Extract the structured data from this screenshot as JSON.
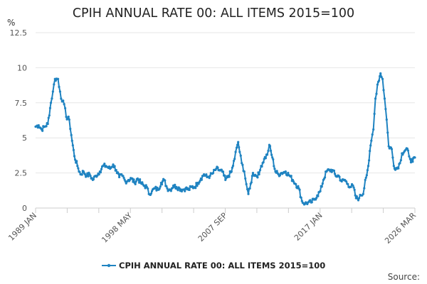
{
  "chart_data": {
    "type": "line",
    "title": "CPIH ANNUAL RATE 00: ALL ITEMS 2015=100",
    "ylabel": "%",
    "xlabel": "",
    "ylim": [
      0,
      12.5
    ],
    "yticks": [
      "0",
      "2.5",
      "5",
      "7.5",
      "10",
      "12.5"
    ],
    "ytick_values": [
      0,
      2.5,
      5,
      7.5,
      10,
      12.5
    ],
    "xticks": [
      "1989 JAN",
      "1998 MAY",
      "2007 SEP",
      "2017 JAN",
      "2026 MAR"
    ],
    "xtick_years": [
      1989.0,
      1998.333,
      2007.667,
      2017.0,
      2026.167
    ],
    "xlim": [
      1989.0,
      2026.167
    ],
    "grid": "horizontal",
    "legend_position": "bottom-center",
    "color": "#1f83c1",
    "series": [
      {
        "name": "CPIH ANNUAL RATE 00: ALL ITEMS 2015=100",
        "anchors": [
          [
            1989.0,
            5.8
          ],
          [
            1989.3,
            5.9
          ],
          [
            1989.6,
            5.6
          ],
          [
            1989.9,
            5.8
          ],
          [
            1990.2,
            6.0
          ],
          [
            1990.5,
            7.5
          ],
          [
            1990.7,
            8.3
          ],
          [
            1990.9,
            9.2
          ],
          [
            1991.2,
            9.2
          ],
          [
            1991.4,
            8.3
          ],
          [
            1991.6,
            7.6
          ],
          [
            1991.8,
            7.4
          ],
          [
            1992.0,
            6.5
          ],
          [
            1992.3,
            6.3
          ],
          [
            1992.5,
            5.2
          ],
          [
            1992.8,
            3.7
          ],
          [
            1993.1,
            3.0
          ],
          [
            1993.4,
            2.4
          ],
          [
            1993.7,
            2.6
          ],
          [
            1994.0,
            2.3
          ],
          [
            1994.3,
            2.4
          ],
          [
            1994.6,
            2.0
          ],
          [
            1994.9,
            2.3
          ],
          [
            1995.3,
            2.6
          ],
          [
            1995.6,
            3.0
          ],
          [
            1995.9,
            3.0
          ],
          [
            1996.3,
            2.8
          ],
          [
            1996.6,
            3.1
          ],
          [
            1996.9,
            2.7
          ],
          [
            1997.2,
            2.2
          ],
          [
            1997.5,
            2.3
          ],
          [
            1997.8,
            1.9
          ],
          [
            1998.1,
            2.0
          ],
          [
            1998.4,
            2.1
          ],
          [
            1998.7,
            1.8
          ],
          [
            1999.0,
            2.1
          ],
          [
            1999.3,
            1.8
          ],
          [
            1999.6,
            1.6
          ],
          [
            1999.9,
            1.5
          ],
          [
            2000.1,
            1.0
          ],
          [
            2000.4,
            1.2
          ],
          [
            2000.7,
            1.4
          ],
          [
            2001.0,
            1.3
          ],
          [
            2001.3,
            1.8
          ],
          [
            2001.6,
            2.0
          ],
          [
            2001.9,
            1.4
          ],
          [
            2002.2,
            1.3
          ],
          [
            2002.5,
            1.6
          ],
          [
            2002.8,
            1.5
          ],
          [
            2003.1,
            1.4
          ],
          [
            2003.4,
            1.3
          ],
          [
            2003.7,
            1.4
          ],
          [
            2004.0,
            1.3
          ],
          [
            2004.3,
            1.5
          ],
          [
            2004.6,
            1.5
          ],
          [
            2004.9,
            1.8
          ],
          [
            2005.2,
            2.1
          ],
          [
            2005.5,
            2.4
          ],
          [
            2005.8,
            2.2
          ],
          [
            2006.1,
            2.3
          ],
          [
            2006.4,
            2.5
          ],
          [
            2006.7,
            2.8
          ],
          [
            2007.0,
            2.7
          ],
          [
            2007.3,
            2.6
          ],
          [
            2007.6,
            2.0
          ],
          [
            2007.9,
            2.3
          ],
          [
            2008.2,
            2.6
          ],
          [
            2008.5,
            3.5
          ],
          [
            2008.7,
            4.3
          ],
          [
            2008.85,
            4.7
          ],
          [
            2009.0,
            4.0
          ],
          [
            2009.2,
            3.2
          ],
          [
            2009.45,
            2.6
          ],
          [
            2009.65,
            1.7
          ],
          [
            2009.85,
            1.0
          ],
          [
            2010.0,
            1.4
          ],
          [
            2010.3,
            2.5
          ],
          [
            2010.6,
            2.3
          ],
          [
            2010.9,
            2.4
          ],
          [
            2011.1,
            3.0
          ],
          [
            2011.4,
            3.5
          ],
          [
            2011.7,
            3.8
          ],
          [
            2011.9,
            4.5
          ],
          [
            2012.2,
            3.6
          ],
          [
            2012.5,
            2.6
          ],
          [
            2012.8,
            2.4
          ],
          [
            2013.1,
            2.5
          ],
          [
            2013.5,
            2.6
          ],
          [
            2013.9,
            2.3
          ],
          [
            2014.2,
            2.0
          ],
          [
            2014.5,
            1.7
          ],
          [
            2014.8,
            1.4
          ],
          [
            2015.1,
            0.5
          ],
          [
            2015.4,
            0.3
          ],
          [
            2015.7,
            0.4
          ],
          [
            2016.0,
            0.4
          ],
          [
            2016.3,
            0.6
          ],
          [
            2016.6,
            0.9
          ],
          [
            2016.9,
            1.2
          ],
          [
            2017.2,
            2.0
          ],
          [
            2017.5,
            2.6
          ],
          [
            2017.8,
            2.7
          ],
          [
            2018.1,
            2.7
          ],
          [
            2018.4,
            2.3
          ],
          [
            2018.7,
            2.3
          ],
          [
            2019.0,
            1.9
          ],
          [
            2019.3,
            2.0
          ],
          [
            2019.6,
            1.7
          ],
          [
            2019.9,
            1.5
          ],
          [
            2020.1,
            1.6
          ],
          [
            2020.4,
            0.7
          ],
          [
            2020.7,
            0.7
          ],
          [
            2020.9,
            0.9
          ],
          [
            2021.1,
            1.0
          ],
          [
            2021.3,
            2.0
          ],
          [
            2021.6,
            3.0
          ],
          [
            2021.9,
            4.8
          ],
          [
            2022.1,
            5.6
          ],
          [
            2022.3,
            7.8
          ],
          [
            2022.5,
            8.8
          ],
          [
            2022.8,
            9.6
          ],
          [
            2023.0,
            9.2
          ],
          [
            2023.2,
            7.8
          ],
          [
            2023.4,
            6.3
          ],
          [
            2023.6,
            4.4
          ],
          [
            2023.9,
            4.2
          ],
          [
            2024.1,
            3.0
          ],
          [
            2024.4,
            2.8
          ],
          [
            2024.7,
            3.2
          ],
          [
            2024.9,
            3.9
          ],
          [
            2025.2,
            4.1
          ],
          [
            2025.5,
            4.1
          ],
          [
            2025.7,
            3.5
          ],
          [
            2025.95,
            3.3
          ],
          [
            2026.167,
            3.6
          ]
        ]
      }
    ],
    "source_label": "Source:"
  }
}
